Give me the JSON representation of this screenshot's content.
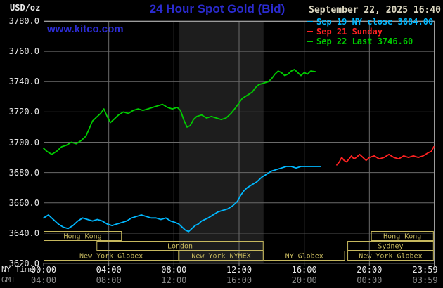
{
  "header": {
    "unit_label": "USD/oz",
    "title": "24 Hour Spot Gold (Bid)",
    "datetime": "September 22, 2025 16:40",
    "watermark": "www.kitco.com"
  },
  "legend": [
    {
      "label": "Sep 19 NY close 3684.00",
      "color": "#00b8ff"
    },
    {
      "label": "Sep 21 Sunday",
      "color": "#ff2222"
    },
    {
      "label": "Sep 22 Last 3746.60",
      "color": "#00cc00"
    }
  ],
  "axes": {
    "y_ticks": [
      "3780.0",
      "3760.0",
      "3740.0",
      "3720.0",
      "3700.0",
      "3680.0",
      "3660.0",
      "3640.0",
      "3620.0"
    ],
    "tick_hours": [
      0,
      4,
      8,
      12,
      16,
      20,
      23.983
    ],
    "x_rows": [
      {
        "label": "NY Time",
        "color": "#e9e9e9",
        "ticks": [
          "00:00",
          "04:00",
          "08:00",
          "12:00",
          "16:00",
          "20:00",
          "23:59"
        ]
      },
      {
        "label": "GMT",
        "color": "#8a8a8a",
        "ticks": [
          "04:00",
          "08:00",
          "12:00",
          "16:00",
          "20:00",
          "00:00",
          "03:59"
        ]
      }
    ]
  },
  "sessions": {
    "color": "#c6b85e",
    "rows": [
      [
        {
          "label": "Hong Kong",
          "start": 0,
          "end": 4.8
        },
        {
          "label": "Hong Kong",
          "start": 20.1,
          "end": 23.95
        }
      ],
      [
        {
          "label": "London",
          "start": 3.25,
          "end": 13.5
        },
        {
          "label": "Sydney",
          "start": 18.65,
          "end": 23.95
        }
      ],
      [
        {
          "label": "New York Globex",
          "start": 0,
          "end": 8.3
        },
        {
          "label": "New York NYMEX",
          "start": 8.3,
          "end": 13.5
        },
        {
          "label": "NY Globex",
          "start": 13.5,
          "end": 18.5
        },
        {
          "label": "New York Globex",
          "start": 18.65,
          "end": 23.95
        }
      ]
    ]
  },
  "chart_data": {
    "type": "line",
    "title": "24 Hour Spot Gold (Bid)",
    "xlabel": "NY Time (hours)",
    "ylabel": "USD/oz",
    "xlim": [
      0,
      24
    ],
    "ylim": [
      3620,
      3780
    ],
    "y_gridlines": [
      3780,
      3760,
      3740,
      3720,
      3700,
      3680,
      3660,
      3640,
      3620
    ],
    "x_gridlines_hours": [
      4,
      8,
      12,
      16,
      20
    ],
    "nymex_band_hours": [
      8.3,
      13.5
    ],
    "grid_color": "#6a6a6a",
    "border_color": "#9c9c9c",
    "band_color": "#1d1d1d",
    "series": [
      {
        "name": "Sep 19 NY close",
        "color": "#00b8ff",
        "last": 3684.0,
        "points": [
          [
            0,
            3650
          ],
          [
            0.3,
            3652
          ],
          [
            0.6,
            3649
          ],
          [
            0.9,
            3646
          ],
          [
            1.2,
            3644
          ],
          [
            1.5,
            3643
          ],
          [
            1.8,
            3645
          ],
          [
            2.1,
            3648
          ],
          [
            2.4,
            3650
          ],
          [
            2.7,
            3649
          ],
          [
            3.0,
            3648
          ],
          [
            3.3,
            3649
          ],
          [
            3.6,
            3648
          ],
          [
            3.9,
            3646
          ],
          [
            4.2,
            3645
          ],
          [
            4.5,
            3646
          ],
          [
            4.8,
            3647
          ],
          [
            5.1,
            3648
          ],
          [
            5.4,
            3650
          ],
          [
            5.7,
            3651
          ],
          [
            6.0,
            3652
          ],
          [
            6.3,
            3651
          ],
          [
            6.6,
            3650
          ],
          [
            6.9,
            3650
          ],
          [
            7.2,
            3649
          ],
          [
            7.5,
            3650
          ],
          [
            7.8,
            3648
          ],
          [
            8.1,
            3647
          ],
          [
            8.3,
            3646
          ],
          [
            8.5,
            3644
          ],
          [
            8.7,
            3642
          ],
          [
            8.9,
            3641
          ],
          [
            9.1,
            3643
          ],
          [
            9.3,
            3645
          ],
          [
            9.5,
            3646
          ],
          [
            9.7,
            3648
          ],
          [
            9.9,
            3649
          ],
          [
            10.1,
            3650
          ],
          [
            10.4,
            3652
          ],
          [
            10.7,
            3654
          ],
          [
            11.0,
            3655
          ],
          [
            11.3,
            3656
          ],
          [
            11.6,
            3658
          ],
          [
            11.9,
            3661
          ],
          [
            12.1,
            3665
          ],
          [
            12.3,
            3668
          ],
          [
            12.5,
            3670
          ],
          [
            12.8,
            3672
          ],
          [
            13.1,
            3674
          ],
          [
            13.4,
            3677
          ],
          [
            13.7,
            3679
          ],
          [
            14.0,
            3681
          ],
          [
            14.3,
            3682
          ],
          [
            14.6,
            3683
          ],
          [
            14.9,
            3684
          ],
          [
            15.2,
            3684
          ],
          [
            15.5,
            3683
          ],
          [
            15.8,
            3684
          ],
          [
            16.2,
            3684
          ],
          [
            16.6,
            3684
          ],
          [
            17.0,
            3684
          ]
        ]
      },
      {
        "name": "Sep 21 Sunday",
        "color": "#ff2222",
        "points": [
          [
            18.0,
            3685
          ],
          [
            18.15,
            3687
          ],
          [
            18.3,
            3690
          ],
          [
            18.45,
            3688
          ],
          [
            18.6,
            3687
          ],
          [
            18.75,
            3689
          ],
          [
            18.9,
            3691
          ],
          [
            19.05,
            3689
          ],
          [
            19.2,
            3690
          ],
          [
            19.4,
            3692
          ],
          [
            19.6,
            3690
          ],
          [
            19.8,
            3688
          ],
          [
            20.0,
            3690
          ],
          [
            20.3,
            3691
          ],
          [
            20.6,
            3689
          ],
          [
            20.9,
            3690
          ],
          [
            21.2,
            3692
          ],
          [
            21.5,
            3690
          ],
          [
            21.8,
            3689
          ],
          [
            22.1,
            3691
          ],
          [
            22.4,
            3690
          ],
          [
            22.7,
            3691
          ],
          [
            23.0,
            3690
          ],
          [
            23.3,
            3691
          ],
          [
            23.6,
            3693
          ],
          [
            23.8,
            3694
          ],
          [
            23.95,
            3697
          ]
        ]
      },
      {
        "name": "Sep 22 Last",
        "color": "#00cc00",
        "last": 3746.6,
        "points": [
          [
            0,
            3696
          ],
          [
            0.2,
            3694
          ],
          [
            0.5,
            3692
          ],
          [
            0.8,
            3694
          ],
          [
            1.1,
            3697
          ],
          [
            1.4,
            3698
          ],
          [
            1.7,
            3700
          ],
          [
            2.0,
            3699
          ],
          [
            2.3,
            3701
          ],
          [
            2.6,
            3704
          ],
          [
            2.8,
            3709
          ],
          [
            3.0,
            3714
          ],
          [
            3.2,
            3716
          ],
          [
            3.5,
            3719
          ],
          [
            3.7,
            3722
          ],
          [
            3.9,
            3717
          ],
          [
            4.1,
            3713
          ],
          [
            4.3,
            3715
          ],
          [
            4.6,
            3718
          ],
          [
            4.9,
            3720
          ],
          [
            5.2,
            3719
          ],
          [
            5.5,
            3721
          ],
          [
            5.8,
            3722
          ],
          [
            6.1,
            3721
          ],
          [
            6.4,
            3722
          ],
          [
            6.7,
            3723
          ],
          [
            7.0,
            3724
          ],
          [
            7.3,
            3725
          ],
          [
            7.6,
            3723
          ],
          [
            7.9,
            3722
          ],
          [
            8.2,
            3723
          ],
          [
            8.4,
            3721
          ],
          [
            8.6,
            3715
          ],
          [
            8.8,
            3710
          ],
          [
            9.0,
            3711
          ],
          [
            9.2,
            3715
          ],
          [
            9.4,
            3717
          ],
          [
            9.7,
            3718
          ],
          [
            10.0,
            3716
          ],
          [
            10.3,
            3717
          ],
          [
            10.6,
            3716
          ],
          [
            10.9,
            3715
          ],
          [
            11.2,
            3716
          ],
          [
            11.5,
            3719
          ],
          [
            11.8,
            3723
          ],
          [
            12.0,
            3726
          ],
          [
            12.2,
            3729
          ],
          [
            12.5,
            3731
          ],
          [
            12.8,
            3733
          ],
          [
            13.0,
            3736
          ],
          [
            13.2,
            3738
          ],
          [
            13.5,
            3739
          ],
          [
            13.8,
            3740
          ],
          [
            14.0,
            3742
          ],
          [
            14.2,
            3745
          ],
          [
            14.4,
            3747
          ],
          [
            14.6,
            3746
          ],
          [
            14.8,
            3744
          ],
          [
            15.0,
            3745
          ],
          [
            15.2,
            3747
          ],
          [
            15.4,
            3748
          ],
          [
            15.6,
            3746
          ],
          [
            15.8,
            3744
          ],
          [
            16.0,
            3746
          ],
          [
            16.2,
            3745
          ],
          [
            16.4,
            3747
          ],
          [
            16.67,
            3746.6
          ]
        ]
      }
    ]
  }
}
